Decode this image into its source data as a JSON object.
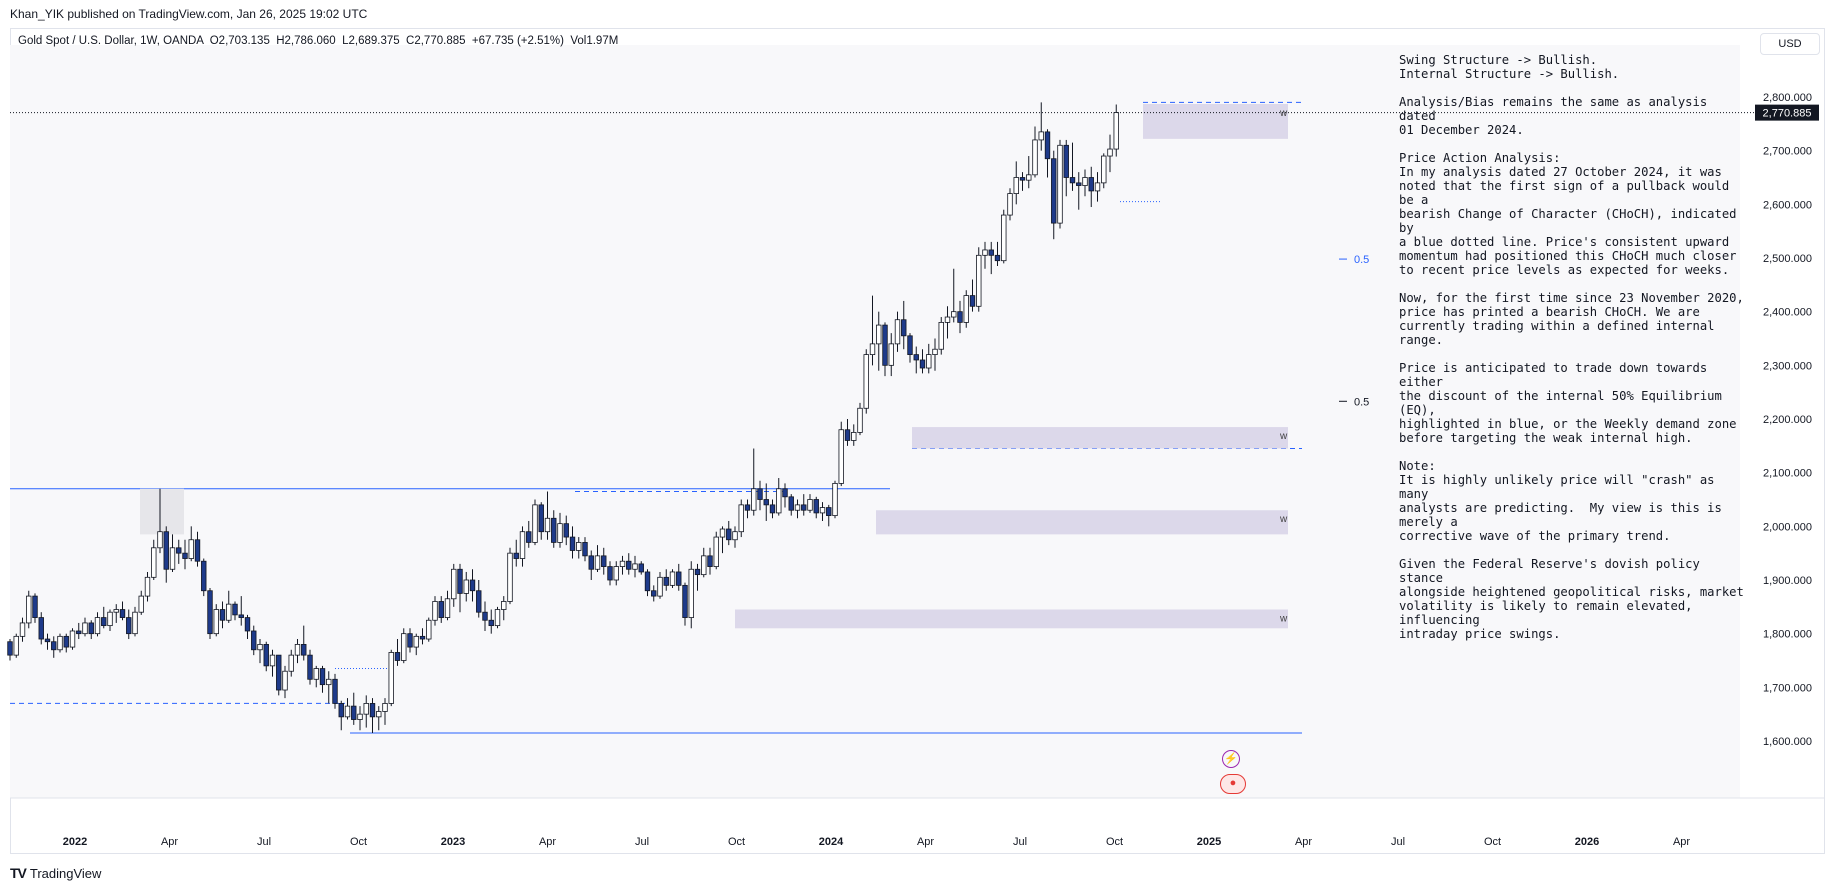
{
  "header": {
    "published_line": "Khan_YIK published on TradingView.com, Jan 26, 2025 19:02 UTC",
    "symbol_line": "Gold Spot / U.S. Dollar, 1W, OANDA  O2,703.135  H2,786.060  L2,689.375  C2,770.885  +67.735 (+2.51%)  Vol1.97M",
    "currency": "USD"
  },
  "colors": {
    "bull": "#ffffff",
    "bear": "#1e3a8a",
    "wick": "#131722",
    "zone": "#dcd8ea",
    "line_blue": "#2962ff",
    "grid_bg": "#f8f8fa"
  },
  "chart_data": {
    "type": "candlestick",
    "timeframe": "1W",
    "ylim": [
      1520,
      2870
    ],
    "y_ticks": [
      "2,800.000",
      "2,700.000",
      "2,600.000",
      "2,500.000",
      "2,400.000",
      "2,300.000",
      "2,200.000",
      "2,100.000",
      "2,000.000",
      "1,900.000",
      "1,800.000",
      "1,700.000",
      "1,600.000"
    ],
    "y_tick_values": [
      2800,
      2700,
      2600,
      2500,
      2400,
      2300,
      2200,
      2100,
      2000,
      1900,
      1800,
      1700,
      1600
    ],
    "x_ticks": [
      "2022",
      "Apr",
      "Jul",
      "Oct",
      "2023",
      "Apr",
      "Jul",
      "Oct",
      "2024",
      "Apr",
      "Jul",
      "Oct",
      "2025",
      "Apr",
      "Jul",
      "Oct",
      "2026",
      "Apr"
    ],
    "x_tick_bold": [
      true,
      false,
      false,
      false,
      true,
      false,
      false,
      false,
      true,
      false,
      false,
      false,
      true,
      false,
      false,
      false,
      true,
      false
    ],
    "last_price_label": "2,770.885",
    "last_price": 2770.885,
    "equilibrium_labels": [
      {
        "label": "0.5",
        "price": 2498,
        "color": "#2962ff"
      },
      {
        "label": "0.5",
        "price": 2233,
        "color": "#131722"
      }
    ],
    "demand_zones": [
      {
        "label": "w",
        "top": 2787,
        "bottom": 2722
      },
      {
        "label": "w",
        "top": 2185,
        "bottom": 2145
      },
      {
        "label": "w",
        "top": 2030,
        "bottom": 1985
      },
      {
        "label": "w",
        "top": 1845,
        "bottom": 1810
      }
    ],
    "candles": [
      [
        1785,
        1790,
        1750,
        1760
      ],
      [
        1760,
        1800,
        1755,
        1795
      ],
      [
        1795,
        1830,
        1785,
        1820
      ],
      [
        1820,
        1880,
        1810,
        1870
      ],
      [
        1870,
        1875,
        1820,
        1830
      ],
      [
        1830,
        1840,
        1780,
        1790
      ],
      [
        1790,
        1800,
        1770,
        1785
      ],
      [
        1785,
        1795,
        1755,
        1770
      ],
      [
        1770,
        1800,
        1765,
        1795
      ],
      [
        1795,
        1800,
        1765,
        1775
      ],
      [
        1775,
        1810,
        1770,
        1805
      ],
      [
        1805,
        1820,
        1790,
        1800
      ],
      [
        1800,
        1830,
        1795,
        1820
      ],
      [
        1820,
        1825,
        1790,
        1800
      ],
      [
        1800,
        1840,
        1795,
        1830
      ],
      [
        1830,
        1850,
        1810,
        1815
      ],
      [
        1815,
        1845,
        1805,
        1840
      ],
      [
        1840,
        1855,
        1820,
        1845
      ],
      [
        1845,
        1860,
        1825,
        1830
      ],
      [
        1830,
        1845,
        1790,
        1800
      ],
      [
        1800,
        1850,
        1795,
        1840
      ],
      [
        1840,
        1880,
        1835,
        1870
      ],
      [
        1870,
        1915,
        1860,
        1905
      ],
      [
        1905,
        1975,
        1900,
        1960
      ],
      [
        1960,
        2070,
        1950,
        1990
      ],
      [
        1990,
        2000,
        1895,
        1920
      ],
      [
        1920,
        1985,
        1915,
        1960
      ],
      [
        1960,
        1975,
        1930,
        1950
      ],
      [
        1950,
        1975,
        1920,
        1940
      ],
      [
        1940,
        2000,
        1935,
        1975
      ],
      [
        1975,
        1990,
        1925,
        1935
      ],
      [
        1935,
        1940,
        1870,
        1880
      ],
      [
        1880,
        1885,
        1790,
        1800
      ],
      [
        1800,
        1855,
        1795,
        1845
      ],
      [
        1845,
        1860,
        1810,
        1825
      ],
      [
        1825,
        1880,
        1820,
        1855
      ],
      [
        1855,
        1860,
        1825,
        1835
      ],
      [
        1835,
        1870,
        1815,
        1830
      ],
      [
        1830,
        1835,
        1790,
        1805
      ],
      [
        1805,
        1815,
        1760,
        1770
      ],
      [
        1770,
        1790,
        1745,
        1780
      ],
      [
        1780,
        1785,
        1730,
        1740
      ],
      [
        1740,
        1770,
        1720,
        1760
      ],
      [
        1760,
        1760,
        1685,
        1695
      ],
      [
        1695,
        1740,
        1680,
        1730
      ],
      [
        1730,
        1770,
        1720,
        1760
      ],
      [
        1760,
        1790,
        1745,
        1780
      ],
      [
        1780,
        1815,
        1750,
        1760
      ],
      [
        1760,
        1770,
        1705,
        1715
      ],
      [
        1715,
        1740,
        1700,
        1735
      ],
      [
        1735,
        1740,
        1690,
        1705
      ],
      [
        1705,
        1730,
        1670,
        1715
      ],
      [
        1715,
        1725,
        1660,
        1670
      ],
      [
        1670,
        1675,
        1620,
        1645
      ],
      [
        1645,
        1680,
        1640,
        1665
      ],
      [
        1665,
        1690,
        1630,
        1640
      ],
      [
        1640,
        1665,
        1620,
        1650
      ],
      [
        1650,
        1685,
        1625,
        1670
      ],
      [
        1670,
        1680,
        1615,
        1645
      ],
      [
        1645,
        1665,
        1620,
        1655
      ],
      [
        1655,
        1680,
        1630,
        1670
      ],
      [
        1670,
        1770,
        1665,
        1765
      ],
      [
        1765,
        1790,
        1740,
        1750
      ],
      [
        1750,
        1810,
        1745,
        1800
      ],
      [
        1800,
        1810,
        1765,
        1775
      ],
      [
        1775,
        1800,
        1760,
        1795
      ],
      [
        1795,
        1810,
        1780,
        1790
      ],
      [
        1790,
        1830,
        1785,
        1825
      ],
      [
        1825,
        1870,
        1815,
        1860
      ],
      [
        1860,
        1870,
        1820,
        1830
      ],
      [
        1830,
        1880,
        1825,
        1865
      ],
      [
        1865,
        1930,
        1850,
        1920
      ],
      [
        1920,
        1930,
        1840,
        1875
      ],
      [
        1875,
        1915,
        1860,
        1900
      ],
      [
        1900,
        1920,
        1860,
        1880
      ],
      [
        1880,
        1900,
        1830,
        1840
      ],
      [
        1840,
        1860,
        1805,
        1825
      ],
      [
        1825,
        1845,
        1800,
        1815
      ],
      [
        1815,
        1850,
        1810,
        1845
      ],
      [
        1845,
        1870,
        1825,
        1860
      ],
      [
        1860,
        1960,
        1855,
        1950
      ],
      [
        1950,
        1975,
        1925,
        1940
      ],
      [
        1940,
        2000,
        1925,
        1990
      ],
      [
        1990,
        2010,
        1960,
        1970
      ],
      [
        1970,
        2050,
        1965,
        2040
      ],
      [
        2040,
        2045,
        1975,
        1990
      ],
      [
        1990,
        2065,
        1975,
        2015
      ],
      [
        2015,
        2030,
        1960,
        1970
      ],
      [
        1970,
        2025,
        1960,
        2005
      ],
      [
        2005,
        2020,
        1965,
        1980
      ],
      [
        1980,
        2000,
        1940,
        1955
      ],
      [
        1955,
        1980,
        1940,
        1970
      ],
      [
        1970,
        1980,
        1935,
        1945
      ],
      [
        1945,
        1955,
        1900,
        1920
      ],
      [
        1920,
        1965,
        1915,
        1945
      ],
      [
        1945,
        1960,
        1910,
        1925
      ],
      [
        1925,
        1935,
        1890,
        1900
      ],
      [
        1900,
        1935,
        1890,
        1925
      ],
      [
        1925,
        1945,
        1910,
        1935
      ],
      [
        1935,
        1950,
        1910,
        1920
      ],
      [
        1920,
        1945,
        1905,
        1930
      ],
      [
        1930,
        1935,
        1910,
        1915
      ],
      [
        1915,
        1920,
        1870,
        1880
      ],
      [
        1880,
        1890,
        1860,
        1870
      ],
      [
        1870,
        1915,
        1865,
        1905
      ],
      [
        1905,
        1920,
        1880,
        1890
      ],
      [
        1890,
        1920,
        1885,
        1915
      ],
      [
        1915,
        1930,
        1880,
        1890
      ],
      [
        1890,
        1895,
        1815,
        1830
      ],
      [
        1830,
        1935,
        1810,
        1920
      ],
      [
        1920,
        1930,
        1880,
        1910
      ],
      [
        1910,
        1960,
        1905,
        1945
      ],
      [
        1945,
        1960,
        1910,
        1925
      ],
      [
        1925,
        1990,
        1920,
        1980
      ],
      [
        1980,
        2000,
        1950,
        1995
      ],
      [
        1995,
        2010,
        1965,
        1975
      ],
      [
        1975,
        2000,
        1960,
        1990
      ],
      [
        1990,
        2050,
        1980,
        2040
      ],
      [
        2040,
        2050,
        2015,
        2030
      ],
      [
        2030,
        2145,
        2020,
        2070
      ],
      [
        2070,
        2085,
        2030,
        2050
      ],
      [
        2050,
        2080,
        2010,
        2040
      ],
      [
        2040,
        2050,
        2015,
        2025
      ],
      [
        2025,
        2090,
        2020,
        2070
      ],
      [
        2070,
        2080,
        2035,
        2055
      ],
      [
        2055,
        2060,
        2020,
        2030
      ],
      [
        2030,
        2050,
        2015,
        2040
      ],
      [
        2040,
        2060,
        2020,
        2030
      ],
      [
        2030,
        2060,
        2025,
        2050
      ],
      [
        2050,
        2055,
        2015,
        2025
      ],
      [
        2025,
        2045,
        2010,
        2035
      ],
      [
        2035,
        2040,
        2000,
        2020
      ],
      [
        2020,
        2085,
        2015,
        2080
      ],
      [
        2080,
        2195,
        2075,
        2180
      ],
      [
        2180,
        2200,
        2150,
        2160
      ],
      [
        2160,
        2190,
        2150,
        2175
      ],
      [
        2175,
        2230,
        2170,
        2220
      ],
      [
        2220,
        2330,
        2210,
        2320
      ],
      [
        2320,
        2430,
        2300,
        2340
      ],
      [
        2340,
        2400,
        2290,
        2375
      ],
      [
        2375,
        2380,
        2280,
        2300
      ],
      [
        2300,
        2360,
        2280,
        2340
      ],
      [
        2340,
        2400,
        2325,
        2385
      ],
      [
        2385,
        2420,
        2330,
        2355
      ],
      [
        2355,
        2360,
        2305,
        2320
      ],
      [
        2320,
        2335,
        2285,
        2310
      ],
      [
        2310,
        2330,
        2285,
        2295
      ],
      [
        2295,
        2340,
        2285,
        2320
      ],
      [
        2320,
        2350,
        2290,
        2330
      ],
      [
        2330,
        2390,
        2320,
        2380
      ],
      [
        2380,
        2410,
        2350,
        2390
      ],
      [
        2390,
        2480,
        2380,
        2400
      ],
      [
        2400,
        2420,
        2360,
        2380
      ],
      [
        2380,
        2440,
        2370,
        2430
      ],
      [
        2430,
        2460,
        2400,
        2410
      ],
      [
        2410,
        2520,
        2400,
        2505
      ],
      [
        2505,
        2530,
        2480,
        2515
      ],
      [
        2515,
        2530,
        2470,
        2505
      ],
      [
        2505,
        2530,
        2485,
        2495
      ],
      [
        2495,
        2590,
        2490,
        2580
      ],
      [
        2580,
        2630,
        2570,
        2620
      ],
      [
        2620,
        2680,
        2600,
        2650
      ],
      [
        2650,
        2660,
        2625,
        2645
      ],
      [
        2645,
        2690,
        2630,
        2655
      ],
      [
        2655,
        2745,
        2650,
        2720
      ],
      [
        2720,
        2790,
        2700,
        2735
      ],
      [
        2735,
        2740,
        2650,
        2685
      ],
      [
        2685,
        2700,
        2535,
        2565
      ],
      [
        2565,
        2720,
        2555,
        2710
      ],
      [
        2710,
        2720,
        2615,
        2650
      ],
      [
        2650,
        2715,
        2625,
        2640
      ],
      [
        2640,
        2660,
        2590,
        2635
      ],
      [
        2635,
        2665,
        2615,
        2650
      ],
      [
        2650,
        2670,
        2595,
        2625
      ],
      [
        2625,
        2660,
        2605,
        2640
      ],
      [
        2640,
        2695,
        2630,
        2690
      ],
      [
        2690,
        2730,
        2660,
        2703
      ],
      [
        2703,
        2786,
        2689,
        2771
      ]
    ]
  },
  "notes": {
    "p1": "Swing Structure -> Bullish.\nInternal Structure -> Bullish.",
    "p2": "Analysis/Bias remains the same as analysis dated\n01 December 2024.",
    "p3": "Price Action Analysis:\nIn my analysis dated 27 October 2024, it was\nnoted that the first sign of a pullback would be a\nbearish Change of Character (CHoCH), indicated by\na blue dotted line. Price's consistent upward\nmomentum had positioned this CHoCH much closer\nto recent price levels as expected for weeks.",
    "p4": "Now, for the first time since 23 November 2020,\nprice has printed a bearish CHoCH. We are\ncurrently trading within a defined internal range.",
    "p5": "Price is anticipated to trade down towards either\nthe discount of the internal 50% Equilibrium (EQ),\nhighlighted in blue, or the Weekly demand zone\nbefore targeting the weak internal high.",
    "p6": "Note:\nIt is highly unlikely price will \"crash\" as many\nanalysts are predicting.  My view is this is merely a\ncorrective wave of the primary trend.",
    "p7": "Given the Federal Reserve's dovish policy stance\nalongside heightened geopolitical risks, market\nvolatility is likely to remain elevated, influencing\nintraday price swings."
  },
  "footer": {
    "logo_mark": "TV",
    "logo_text": "TradingView"
  },
  "icons": {
    "events_bolt": "lightning-icon",
    "events_flag": "us-flag-icon"
  }
}
